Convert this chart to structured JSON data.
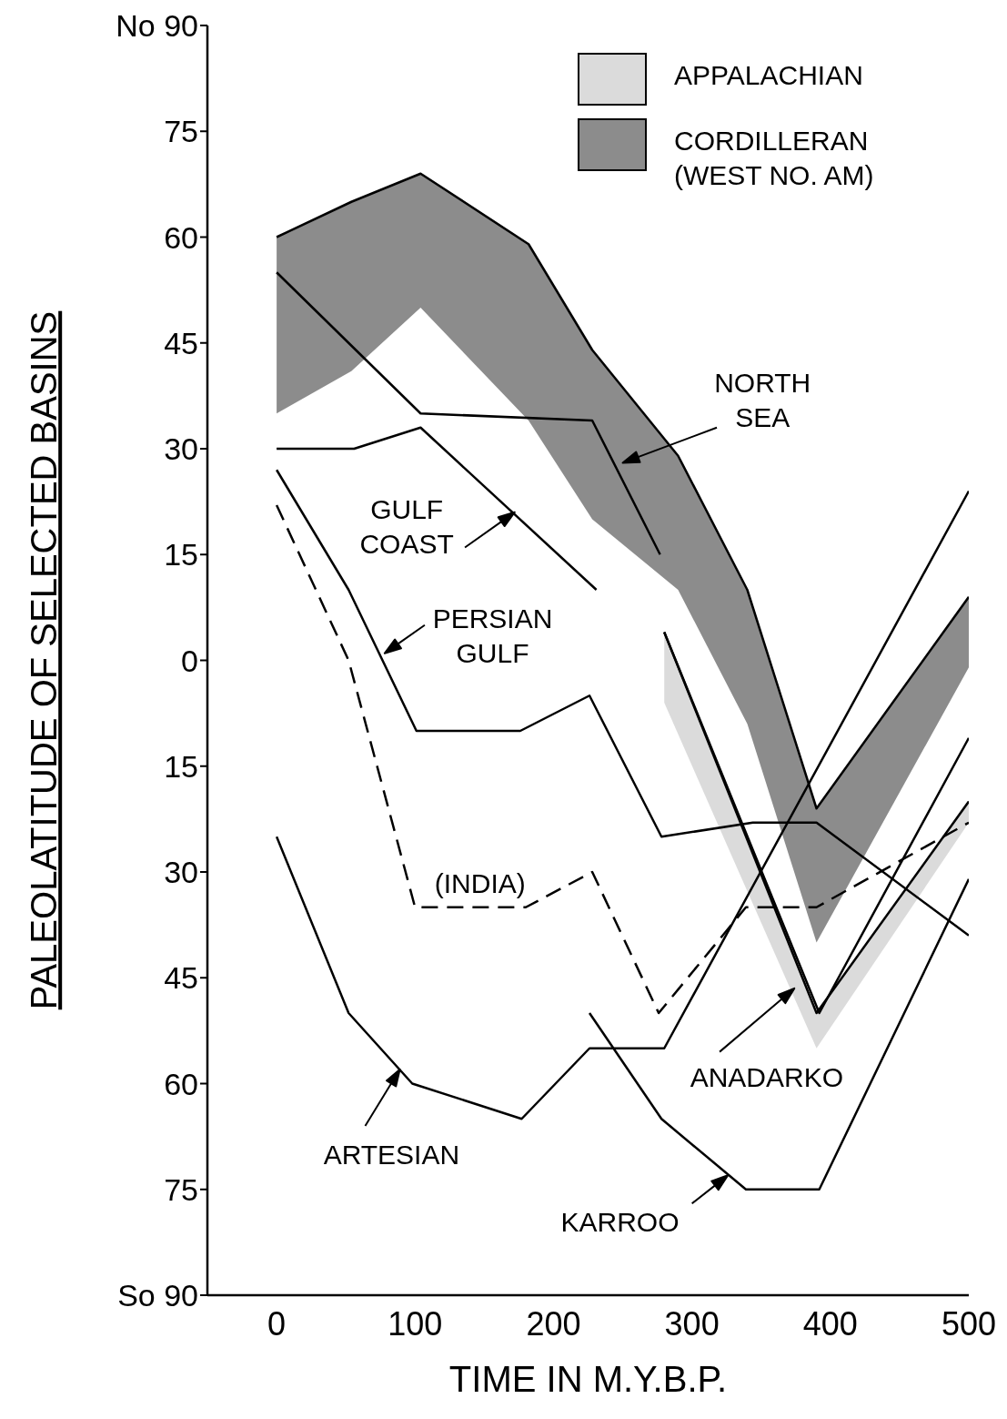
{
  "chart_data": {
    "type": "line",
    "xlabel": "TIME    IN  M.Y.B.P.",
    "ylabel": "PALEOLATITUDE  OF  SELECTED  BASINS",
    "xlim": [
      -50,
      500
    ],
    "ylim": [
      -90,
      90
    ],
    "xticks": [
      0,
      100,
      200,
      300,
      400,
      500
    ],
    "yticks": [
      {
        "value": 90,
        "label": "No 90"
      },
      75,
      60,
      45,
      30,
      15,
      0,
      {
        "value": -15,
        "label": "15"
      },
      {
        "value": -30,
        "label": "30"
      },
      {
        "value": -45,
        "label": "45"
      },
      {
        "value": -60,
        "label": "60"
      },
      {
        "value": -75,
        "label": "75"
      },
      {
        "value": -90,
        "label": "So 90"
      }
    ],
    "legend": "top right",
    "marker": "none",
    "line_style": "solid",
    "series": [
      {
        "type": "line",
        "name": "APPALACHIAN",
        "color": "#000000",
        "x": [
          280,
          390,
          500
        ],
        "values": [
          4,
          -50,
          -20
        ],
        "lower": [
          -6,
          -55,
          -23
        ],
        "upper": [
          4,
          -50,
          -20
        ]
      },
      {
        "type": "line",
        "name": "CORDILLERAN (WEST NO. AM)",
        "color": "#000000",
        "x": [
          0,
          54,
          104,
          182,
          228,
          290,
          340,
          390,
          500
        ],
        "values": [
          60,
          65,
          69,
          59,
          44,
          29,
          10,
          -21,
          9
        ],
        "lower": [
          35,
          41,
          50,
          34,
          20,
          10,
          -9,
          -40,
          -1
        ],
        "upper": [
          60,
          65,
          69,
          59,
          44,
          29,
          10,
          -21,
          9
        ]
      },
      {
        "type": "line",
        "name": "NORTH SEA",
        "color": "#000000",
        "x": [
          0,
          104,
          228,
          277
        ],
        "values": [
          55,
          35,
          34,
          15
        ]
      },
      {
        "type": "line",
        "name": "GULF COAST",
        "color": "#000000",
        "x": [
          0,
          56,
          104,
          231
        ],
        "values": [
          30,
          30,
          33,
          10
        ]
      },
      {
        "type": "line",
        "name": "PERSIAN GULF",
        "color": "#000000",
        "x": [
          0,
          52,
          101,
          176,
          226,
          278,
          344,
          390,
          500
        ],
        "values": [
          27,
          10,
          -10,
          -10,
          -5,
          -25,
          -23,
          -23,
          -39
        ]
      },
      {
        "type": "line",
        "name": "(INDIA)",
        "color": "#000000",
        "line_style": "dashed",
        "x": [
          0,
          52,
          100,
          180,
          228,
          276,
          339,
          390,
          500
        ],
        "values": [
          22,
          0,
          -35,
          -35,
          -30,
          -50,
          -35,
          -35,
          -23
        ]
      },
      {
        "type": "line",
        "name": "ARTESIAN",
        "color": "#000000",
        "x": [
          0,
          52,
          98,
          177,
          226,
          280,
          500
        ],
        "values": [
          -25,
          -50,
          -60,
          -65,
          -55,
          -55,
          24
        ]
      },
      {
        "type": "line",
        "name": "KARROO",
        "color": "#000000",
        "x": [
          226,
          278,
          339,
          392,
          500
        ],
        "values": [
          -50,
          -65,
          -75,
          -75,
          -31
        ]
      },
      {
        "type": "line",
        "name": "ANADARKO",
        "color": "#000000",
        "x": [
          280,
          392,
          500
        ],
        "values": [
          4,
          -50,
          -11
        ]
      }
    ]
  }
}
